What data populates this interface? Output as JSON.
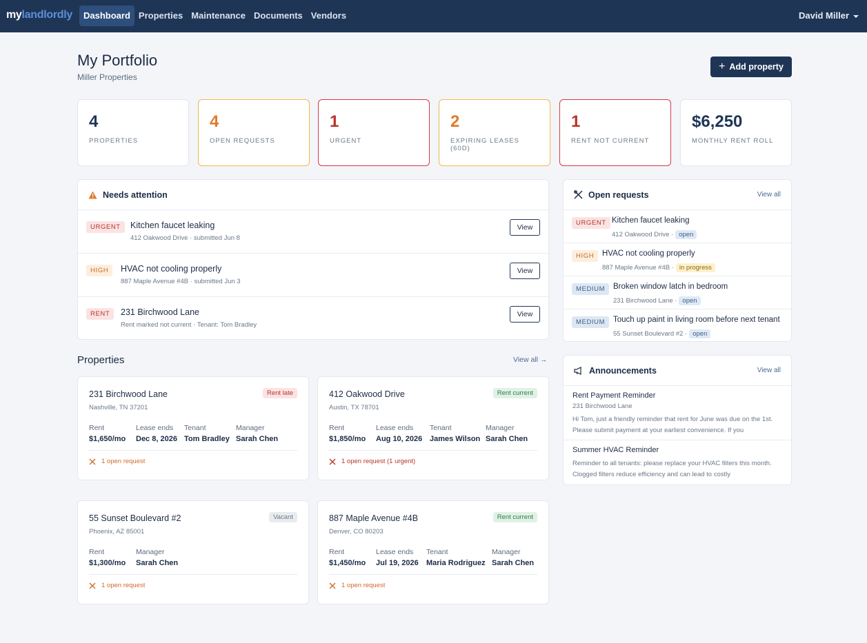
{
  "nav": {
    "brand_a": "my",
    "brand_b": "landlordly",
    "links": [
      "Dashboard",
      "Properties",
      "Maintenance",
      "Documents",
      "Vendors"
    ],
    "active": "Dashboard",
    "user": "David Miller"
  },
  "header": {
    "title": "My Portfolio",
    "subtitle": "Miller Properties",
    "add_button": "Add property"
  },
  "stats": [
    {
      "value": "4",
      "label": "Properties",
      "color": "#1f3556"
    },
    {
      "value": "4",
      "label": "Open requests",
      "color": "#e07a2a"
    },
    {
      "value": "1",
      "label": "Urgent",
      "color": "#b7352b"
    },
    {
      "value": "2",
      "label": "Expiring leases (60d)",
      "color": "#e07a2a"
    },
    {
      "value": "1",
      "label": "Rent not current",
      "color": "#b7352b"
    },
    {
      "value": "$6,250",
      "label": "Monthly rent roll",
      "color": "#1f3556"
    }
  ],
  "attention": {
    "title": "Needs attention",
    "items": [
      {
        "badge": "URGENT",
        "title": "Kitchen faucet leaking",
        "sub": "412 Oakwood Drive · submitted Jun 8",
        "button": "View"
      },
      {
        "badge": "HIGH",
        "title": "HVAC not cooling properly",
        "sub": "887 Maple Avenue #4B · submitted Jun 3",
        "button": "View"
      },
      {
        "badge": "RENT",
        "title": "231 Birchwood Lane",
        "sub": "Rent marked not current · Tenant: Tom Bradley",
        "button": "View"
      }
    ]
  },
  "requests": {
    "title": "Open requests",
    "view_all": "View all",
    "items": [
      {
        "badge": "URGENT",
        "title": "Kitchen faucet leaking",
        "address": "412 Oakwood Drive ·",
        "status": "open"
      },
      {
        "badge": "HIGH",
        "title": "HVAC not cooling properly",
        "address": "887 Maple Avenue #4B ·",
        "status": "in progress"
      },
      {
        "badge": "MEDIUM",
        "title": "Broken window latch in bedroom",
        "address": "231 Birchwood Lane ·",
        "status": "open"
      },
      {
        "badge": "MEDIUM",
        "title": "Touch up paint in living room before next tenant",
        "address": "55 Sunset Boulevard #2 ·",
        "status": "open"
      }
    ]
  },
  "announcements": {
    "title": "Announcements",
    "view_all": "View all",
    "items": [
      {
        "title": "Rent Payment Reminder",
        "sub": "231 Birchwood Lane",
        "body": "Hi Tom, just a friendly reminder that rent for June was due on the 1st. Please submit payment at your earliest convenience. If you"
      },
      {
        "title": "Summer HVAC Reminder",
        "body": "Reminder to all tenants: please replace your HVAC filters this month. Clogged filters reduce efficiency and can lead to costly"
      }
    ]
  },
  "properties": {
    "title": "Properties",
    "view_all": "View all →",
    "items": [
      {
        "name": "231 Birchwood Lane",
        "loc": "Nashville, TN 37201",
        "status": "Rent late",
        "rent_l": "Rent",
        "rent": "$1,650/mo",
        "lease_l": "Lease ends",
        "lease": "Dec 8, 2026",
        "tenant_l": "Tenant",
        "tenant": "Tom Bradley",
        "mgr_l": "Manager",
        "mgr": "Sarah Chen",
        "req": "1 open request"
      },
      {
        "name": "412 Oakwood Drive",
        "loc": "Austin, TX 78701",
        "status": "Rent current",
        "rent_l": "Rent",
        "rent": "$1,850/mo",
        "lease_l": "Lease ends",
        "lease": "Aug 10, 2026",
        "tenant_l": "Tenant",
        "tenant": "James Wilson",
        "mgr_l": "Manager",
        "mgr": "Sarah Chen",
        "req": "1 open request (1 urgent)"
      },
      {
        "name": "55 Sunset Boulevard #2",
        "loc": "Phoenix, AZ 85001",
        "status": "Vacant",
        "rent_l": "Rent",
        "rent": "$1,300/mo",
        "mgr_l": "Manager",
        "mgr": "Sarah Chen",
        "req": "1 open request"
      },
      {
        "name": "887 Maple Avenue #4B",
        "loc": "Denver, CO 80203",
        "status": "Rent current",
        "rent_l": "Rent",
        "rent": "$1,450/mo",
        "lease_l": "Lease ends",
        "lease": "Jul 19, 2026",
        "tenant_l": "Tenant",
        "tenant": "Maria Rodriguez",
        "mgr_l": "Manager",
        "mgr": "Sarah Chen",
        "req": "1 open request"
      }
    ]
  }
}
